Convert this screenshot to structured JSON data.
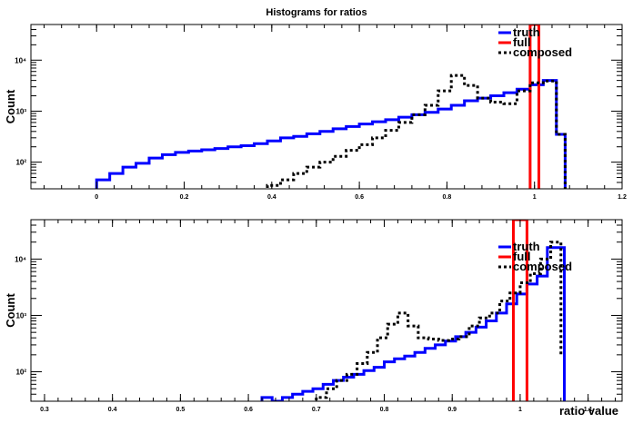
{
  "figure_title": "Histograms for ratios",
  "chart_data": [
    {
      "type": "line",
      "title": "Histograms for ratios",
      "xlabel": "",
      "ylabel": "Count",
      "xlim": [
        -0.15,
        1.2
      ],
      "ylim": [
        30,
        50000
      ],
      "yscale": "log",
      "grid": false,
      "legend_position": "top-right",
      "x_ticks": [
        0,
        0.2,
        0.4,
        0.6,
        0.8,
        1,
        1.2
      ],
      "x_tick_labels": [
        "0",
        "0.2",
        "0.4",
        "0.6",
        "0.8",
        "1",
        "1.2"
      ],
      "y_ticks": [
        100,
        1000,
        10000
      ],
      "y_tick_labels": [
        "10²",
        "10³",
        "10⁴"
      ],
      "series": [
        {
          "name": "truth",
          "color": "#0000ff",
          "style": "solid",
          "step_edges": [
            0.0,
            0.03,
            0.06,
            0.09,
            0.12,
            0.15,
            0.18,
            0.21,
            0.24,
            0.27,
            0.3,
            0.33,
            0.36,
            0.39,
            0.42,
            0.45,
            0.48,
            0.51,
            0.54,
            0.57,
            0.6,
            0.63,
            0.66,
            0.69,
            0.72,
            0.75,
            0.78,
            0.81,
            0.84,
            0.87,
            0.9,
            0.93,
            0.96,
            0.99,
            1.02,
            1.05,
            1.07
          ],
          "values": [
            45,
            60,
            80,
            95,
            120,
            140,
            155,
            165,
            175,
            185,
            200,
            210,
            230,
            260,
            300,
            320,
            360,
            400,
            450,
            500,
            560,
            620,
            680,
            760,
            850,
            950,
            1100,
            1300,
            1600,
            1800,
            2000,
            2300,
            2700,
            3300,
            4000,
            350
          ]
        },
        {
          "name": "full",
          "color": "#ff0000",
          "style": "solid",
          "step_edges": [
            0.99,
            1.01
          ],
          "values": [
            50000
          ]
        },
        {
          "name": "composed",
          "color": "#000000",
          "style": "dotted",
          "step_edges": [
            0.39,
            0.42,
            0.45,
            0.48,
            0.51,
            0.54,
            0.57,
            0.6,
            0.63,
            0.66,
            0.69,
            0.72,
            0.75,
            0.78,
            0.81,
            0.84,
            0.87,
            0.9,
            0.93,
            0.96,
            0.99,
            1.02,
            1.05,
            1.07
          ],
          "values": [
            35,
            45,
            60,
            80,
            100,
            130,
            170,
            220,
            300,
            420,
            600,
            850,
            1300,
            2500,
            5000,
            3200,
            1800,
            1500,
            1400,
            2500,
            3600,
            3900,
            350
          ]
        }
      ]
    },
    {
      "type": "line",
      "title": "",
      "xlabel": "ratio value",
      "ylabel": "Count",
      "xlim": [
        0.28,
        1.15
      ],
      "ylim": [
        30,
        50000
      ],
      "yscale": "log",
      "grid": false,
      "legend_position": "top-right",
      "x_ticks": [
        0.3,
        0.4,
        0.5,
        0.6,
        0.7,
        0.8,
        0.9,
        1,
        1.1
      ],
      "x_tick_labels": [
        "0.3",
        "0.4",
        "0.5",
        "0.6",
        "0.7",
        "0.8",
        "0.9",
        "1",
        "1.1"
      ],
      "y_ticks": [
        100,
        1000,
        10000
      ],
      "y_tick_labels": [
        "10²",
        "10³",
        "10⁴"
      ],
      "series": [
        {
          "name": "truth",
          "color": "#0000ff",
          "style": "solid",
          "step_edges": [
            0.62,
            0.635,
            0.65,
            0.665,
            0.68,
            0.695,
            0.71,
            0.725,
            0.74,
            0.755,
            0.77,
            0.785,
            0.8,
            0.815,
            0.83,
            0.845,
            0.86,
            0.875,
            0.89,
            0.905,
            0.92,
            0.935,
            0.95,
            0.965,
            0.98,
            0.995,
            1.01,
            1.025,
            1.04,
            1.065
          ],
          "values": [
            35,
            30,
            35,
            40,
            45,
            50,
            60,
            70,
            80,
            90,
            105,
            120,
            150,
            170,
            190,
            220,
            260,
            300,
            350,
            420,
            500,
            620,
            800,
            1100,
            1600,
            2400,
            3600,
            5000,
            16000,
            30
          ]
        },
        {
          "name": "full",
          "color": "#ff0000",
          "style": "solid",
          "step_edges": [
            0.99,
            1.01
          ],
          "values": [
            50000
          ]
        },
        {
          "name": "composed",
          "color": "#000000",
          "style": "dotted",
          "step_edges": [
            0.7,
            0.715,
            0.73,
            0.745,
            0.76,
            0.775,
            0.79,
            0.805,
            0.82,
            0.835,
            0.85,
            0.865,
            0.88,
            0.895,
            0.91,
            0.925,
            0.94,
            0.955,
            0.97,
            0.985,
            1.0,
            1.015,
            1.03,
            1.045,
            1.06
          ],
          "values": [
            35,
            50,
            70,
            90,
            140,
            220,
            400,
            700,
            1100,
            650,
            400,
            380,
            360,
            380,
            420,
            650,
            900,
            1100,
            1800,
            2500,
            3800,
            5500,
            10000,
            20000,
            200
          ]
        }
      ]
    }
  ]
}
